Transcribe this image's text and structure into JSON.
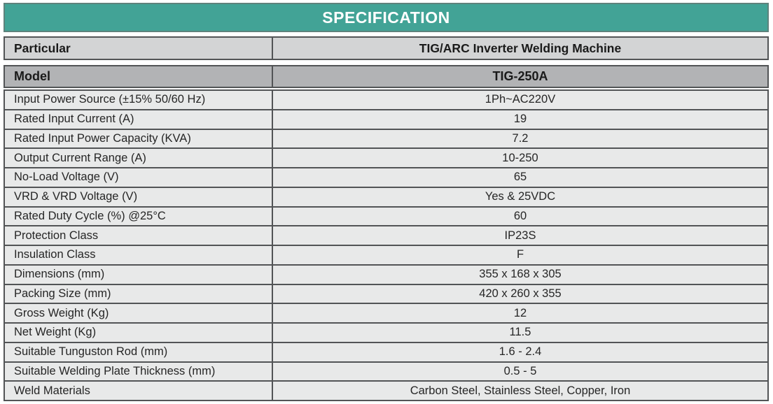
{
  "title": "SPECIFICATION",
  "colors": {
    "title_bg": "#42a396",
    "title_border": "#5e827c",
    "title_text": "#ffffff",
    "subheader_bg": "#d3d4d5",
    "model_bg": "#b2b3b5",
    "row_bg": "#e8e9e9",
    "line": "#525456"
  },
  "header_row": {
    "label": "Particular",
    "value": "TIG/ARC Inverter Welding Machine"
  },
  "model_row": {
    "label": "Model",
    "value": "TIG-250A"
  },
  "rows": [
    {
      "label": "Input Power Source (±15% 50/60 Hz)",
      "value": "1Ph~AC220V"
    },
    {
      "label": "Rated Input Current (A)",
      "value": "19"
    },
    {
      "label": "Rated Input Power Capacity (KVA)",
      "value": "7.2"
    },
    {
      "label": "Output Current Range (A)",
      "value": "10-250"
    },
    {
      "label": "No-Load Voltage (V)",
      "value": "65"
    },
    {
      "label": "VRD & VRD Voltage (V)",
      "value": "Yes & 25VDC"
    },
    {
      "label": "Rated Duty Cycle (%) @25°C",
      "value": "60"
    },
    {
      "label": "Protection Class",
      "value": "IP23S"
    },
    {
      "label": "Insulation Class",
      "value": "F"
    },
    {
      "label": "Dimensions (mm)",
      "value": "355 x 168 x 305"
    },
    {
      "label": "Packing Size (mm)",
      "value": "420 x 260 x 355"
    },
    {
      "label": "Gross Weight (Kg)",
      "value": "12"
    },
    {
      "label": "Net Weight (Kg)",
      "value": "11.5"
    },
    {
      "label": "Suitable Tunguston Rod (mm)",
      "value": "1.6 - 2.4"
    },
    {
      "label": "Suitable Welding Plate Thickness (mm)",
      "value": "0.5 - 5"
    },
    {
      "label": "Weld Materials",
      "value": "Carbon Steel, Stainless Steel, Copper, Iron"
    }
  ]
}
